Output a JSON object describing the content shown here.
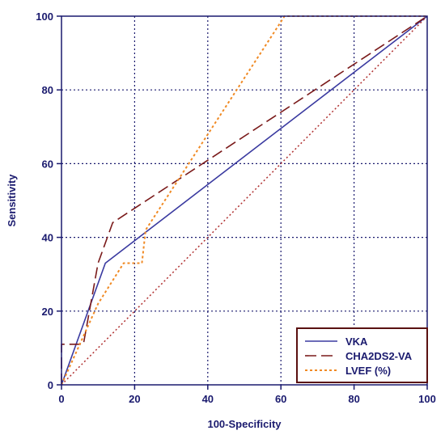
{
  "chart_data": {
    "type": "line",
    "xlabel": "100-Specificity",
    "ylabel": "Sensitivity",
    "xlim": [
      0,
      100
    ],
    "ylim": [
      0,
      100
    ],
    "xticks": [
      0,
      20,
      40,
      60,
      80,
      100
    ],
    "yticks": [
      0,
      20,
      40,
      60,
      80,
      100
    ],
    "x_tick_labels": [
      "0",
      "20",
      "40",
      "60",
      "80",
      "100"
    ],
    "y_tick_labels": [
      "0",
      "20",
      "40",
      "60",
      "80",
      "100"
    ],
    "grid": true,
    "legend_position": "bottom-right",
    "reference_line": {
      "x": [
        0,
        100
      ],
      "y": [
        0,
        100
      ],
      "style": "dotted"
    },
    "series": [
      {
        "name": "VKA",
        "style": "solid",
        "color": "#3a3aa0",
        "x": [
          0,
          12,
          100
        ],
        "y": [
          0,
          33,
          100
        ]
      },
      {
        "name": "CHA2DS2-VA",
        "style": "dashed",
        "color": "#7a1a1a",
        "x": [
          0,
          0,
          6,
          10,
          14,
          100
        ],
        "y": [
          0,
          11,
          11,
          33,
          44,
          100
        ]
      },
      {
        "name": "LVEF (%)",
        "style": "dotted",
        "color": "#f08a24",
        "x": [
          0,
          10,
          17,
          19,
          20,
          22,
          23,
          61,
          62,
          100
        ],
        "y": [
          0,
          22,
          33,
          33,
          33,
          33,
          42,
          100,
          100,
          100
        ]
      }
    ]
  },
  "colors": {
    "axis": "#1a1a6e",
    "grid": "#1a1a6e",
    "frame": "#1a1a6e",
    "legend_border": "#5a1010",
    "reference_line": "#b03030"
  }
}
